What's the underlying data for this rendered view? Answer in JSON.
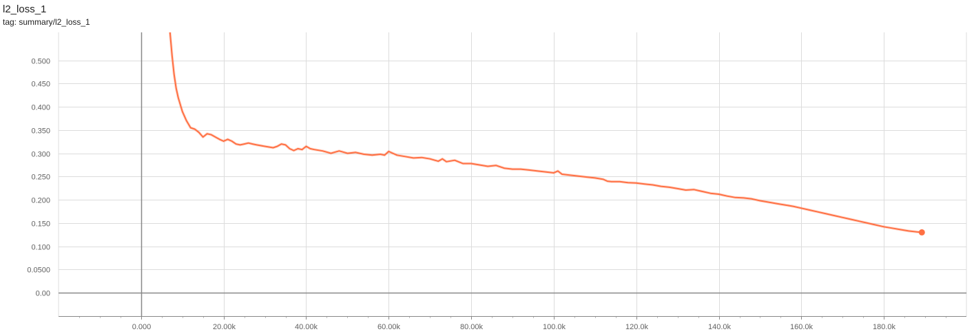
{
  "header": {
    "title": "l2_loss_1",
    "tag": "tag: summary/l2_loss_1"
  },
  "colors": {
    "series": "#ff7043",
    "grid": "#dcdcdc",
    "axis": "#888888",
    "tick_text": "#616161"
  },
  "chart_data": {
    "type": "line",
    "title": "l2_loss_1",
    "xlabel": "",
    "ylabel": "",
    "xlim": [
      -20000,
      200000
    ],
    "ylim": [
      -0.05,
      0.56
    ],
    "grid": true,
    "x_ticks": [
      {
        "value": 0,
        "label": "0.000"
      },
      {
        "value": 20000,
        "label": "20.00k"
      },
      {
        "value": 40000,
        "label": "40.00k"
      },
      {
        "value": 60000,
        "label": "60.00k"
      },
      {
        "value": 80000,
        "label": "80.00k"
      },
      {
        "value": 100000,
        "label": "100.0k"
      },
      {
        "value": 120000,
        "label": "120.0k"
      },
      {
        "value": 140000,
        "label": "140.0k"
      },
      {
        "value": 160000,
        "label": "160.0k"
      },
      {
        "value": 180000,
        "label": "180.0k"
      }
    ],
    "y_ticks": [
      {
        "value": 0.0,
        "label": "0.00"
      },
      {
        "value": 0.05,
        "label": "0.0500"
      },
      {
        "value": 0.1,
        "label": "0.100"
      },
      {
        "value": 0.15,
        "label": "0.150"
      },
      {
        "value": 0.2,
        "label": "0.200"
      },
      {
        "value": 0.25,
        "label": "0.250"
      },
      {
        "value": 0.3,
        "label": "0.300"
      },
      {
        "value": 0.35,
        "label": "0.350"
      },
      {
        "value": 0.4,
        "label": "0.400"
      },
      {
        "value": 0.45,
        "label": "0.450"
      },
      {
        "value": 0.5,
        "label": "0.500"
      }
    ],
    "series": [
      {
        "x": [
          7000,
          7500,
          8000,
          8500,
          9000,
          10000,
          11000,
          12000,
          13000,
          14000,
          15000,
          16000,
          17000,
          18000,
          19000,
          20000,
          21000,
          22000,
          23000,
          24000,
          25000,
          26000,
          27000,
          28000,
          30000,
          32000,
          33000,
          34000,
          35000,
          36000,
          37000,
          38000,
          39000,
          40000,
          41000,
          42000,
          44000,
          46000,
          48000,
          50000,
          52000,
          54000,
          56000,
          58000,
          59000,
          60000,
          61000,
          62000,
          64000,
          66000,
          68000,
          70000,
          72000,
          73000,
          74000,
          76000,
          78000,
          80000,
          82000,
          84000,
          86000,
          88000,
          90000,
          92000,
          94000,
          96000,
          98000,
          100000,
          101000,
          102000,
          104000,
          106000,
          108000,
          110000,
          112000,
          113000,
          114000,
          116000,
          118000,
          120000,
          122000,
          124000,
          126000,
          128000,
          130000,
          132000,
          134000,
          136000,
          138000,
          140000,
          142000,
          144000,
          146000,
          148000,
          150000,
          152000,
          154000,
          156000,
          158000,
          160000,
          162000,
          164000,
          166000,
          168000,
          170000,
          172000,
          174000,
          176000,
          178000,
          180000,
          182000,
          184000,
          186000,
          188000,
          189200
        ],
        "y": [
          0.56,
          0.51,
          0.47,
          0.44,
          0.42,
          0.39,
          0.37,
          0.355,
          0.352,
          0.345,
          0.335,
          0.342,
          0.34,
          0.335,
          0.33,
          0.326,
          0.33,
          0.326,
          0.32,
          0.318,
          0.32,
          0.322,
          0.32,
          0.318,
          0.315,
          0.312,
          0.315,
          0.32,
          0.318,
          0.31,
          0.306,
          0.31,
          0.308,
          0.315,
          0.31,
          0.308,
          0.305,
          0.3,
          0.305,
          0.3,
          0.302,
          0.298,
          0.296,
          0.298,
          0.296,
          0.304,
          0.3,
          0.296,
          0.293,
          0.29,
          0.291,
          0.288,
          0.283,
          0.288,
          0.282,
          0.285,
          0.278,
          0.278,
          0.275,
          0.272,
          0.274,
          0.268,
          0.266,
          0.266,
          0.264,
          0.262,
          0.26,
          0.258,
          0.262,
          0.255,
          0.253,
          0.251,
          0.249,
          0.247,
          0.244,
          0.24,
          0.239,
          0.239,
          0.237,
          0.236,
          0.234,
          0.232,
          0.229,
          0.227,
          0.224,
          0.221,
          0.222,
          0.218,
          0.214,
          0.212,
          0.208,
          0.205,
          0.204,
          0.202,
          0.198,
          0.195,
          0.192,
          0.189,
          0.186,
          0.182,
          0.178,
          0.174,
          0.17,
          0.166,
          0.162,
          0.158,
          0.154,
          0.15,
          0.146,
          0.142,
          0.139,
          0.136,
          0.133,
          0.131,
          0.13
        ]
      }
    ]
  }
}
